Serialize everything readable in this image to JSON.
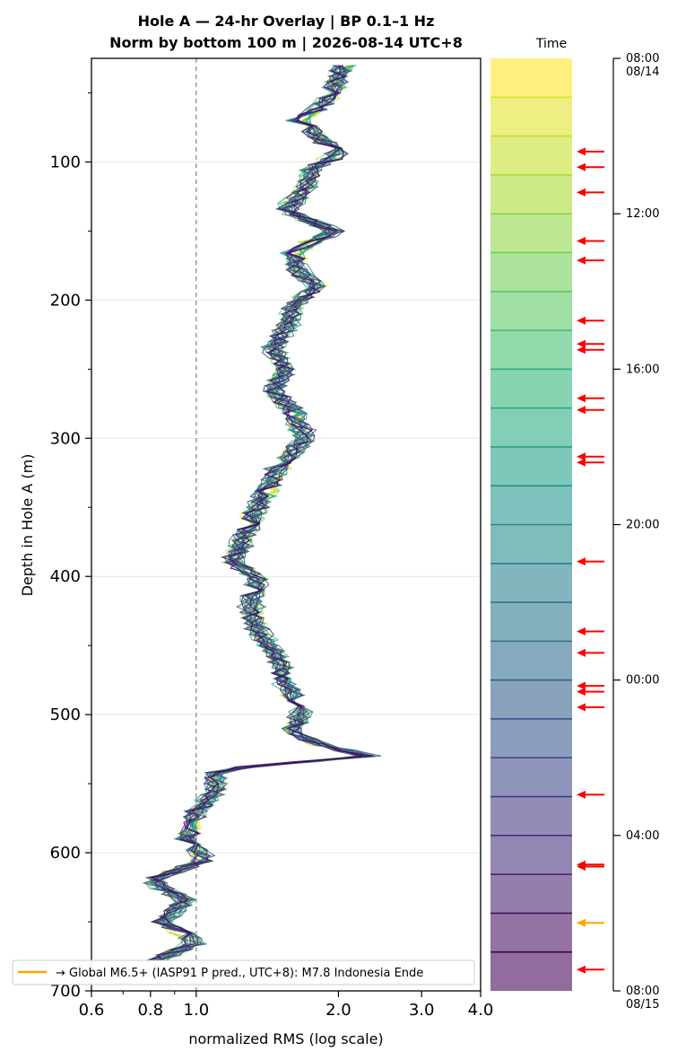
{
  "chart_data": {
    "type": "line",
    "title_line1": "Hole A — 24-hr Overlay  |  BP 0.1–1 Hz",
    "title_line2": "Norm by bottom 100 m  |  2026-08-14 UTC+8",
    "xlabel": "normalized RMS  (log scale)",
    "ylabel": "Depth in Hole A (m)",
    "x_scale": "log",
    "xlim": [
      0.6,
      4.0
    ],
    "ylim": [
      700,
      25
    ],
    "x_ticks": [
      {
        "value": 0.6,
        "label": "0.6"
      },
      {
        "value": 0.8,
        "label": "0.8"
      },
      {
        "value": 1.0,
        "label": "1.0"
      },
      {
        "value": 2.0,
        "label": "2.0"
      },
      {
        "value": 3.0,
        "label": "3.0"
      },
      {
        "value": 4.0,
        "label": "4.0"
      }
    ],
    "y_ticks": [
      100,
      200,
      300,
      400,
      500,
      600,
      700
    ],
    "reference_line_x": 1.0,
    "grid": "horizontal",
    "series_count": 24,
    "colormap": [
      "#fde725",
      "#b5de2b",
      "#6ece58",
      "#35b779",
      "#1f9e89",
      "#26828e",
      "#31688e",
      "#3e4989",
      "#482878",
      "#440154"
    ],
    "profile": [
      {
        "depth": 30,
        "value": 2.05
      },
      {
        "depth": 40,
        "value": 2.0
      },
      {
        "depth": 55,
        "value": 1.9
      },
      {
        "depth": 70,
        "value": 1.65
      },
      {
        "depth": 85,
        "value": 1.85
      },
      {
        "depth": 95,
        "value": 2.0
      },
      {
        "depth": 105,
        "value": 1.75
      },
      {
        "depth": 120,
        "value": 1.7
      },
      {
        "depth": 135,
        "value": 1.55
      },
      {
        "depth": 150,
        "value": 1.95
      },
      {
        "depth": 165,
        "value": 1.6
      },
      {
        "depth": 180,
        "value": 1.65
      },
      {
        "depth": 190,
        "value": 1.8
      },
      {
        "depth": 205,
        "value": 1.6
      },
      {
        "depth": 220,
        "value": 1.55
      },
      {
        "depth": 235,
        "value": 1.45
      },
      {
        "depth": 250,
        "value": 1.55
      },
      {
        "depth": 265,
        "value": 1.45
      },
      {
        "depth": 280,
        "value": 1.6
      },
      {
        "depth": 300,
        "value": 1.7
      },
      {
        "depth": 320,
        "value": 1.5
      },
      {
        "depth": 340,
        "value": 1.4
      },
      {
        "depth": 360,
        "value": 1.3
      },
      {
        "depth": 375,
        "value": 1.25
      },
      {
        "depth": 390,
        "value": 1.2
      },
      {
        "depth": 400,
        "value": 1.35
      },
      {
        "depth": 420,
        "value": 1.3
      },
      {
        "depth": 440,
        "value": 1.35
      },
      {
        "depth": 460,
        "value": 1.5
      },
      {
        "depth": 480,
        "value": 1.55
      },
      {
        "depth": 495,
        "value": 1.7
      },
      {
        "depth": 510,
        "value": 1.6
      },
      {
        "depth": 520,
        "value": 1.75
      },
      {
        "depth": 530,
        "value": 2.3
      },
      {
        "depth": 540,
        "value": 1.1
      },
      {
        "depth": 555,
        "value": 1.1
      },
      {
        "depth": 570,
        "value": 1.0
      },
      {
        "depth": 590,
        "value": 0.95
      },
      {
        "depth": 605,
        "value": 1.05
      },
      {
        "depth": 620,
        "value": 0.8
      },
      {
        "depth": 635,
        "value": 0.95
      },
      {
        "depth": 650,
        "value": 0.85
      },
      {
        "depth": 665,
        "value": 1.0
      },
      {
        "depth": 680,
        "value": 0.8
      }
    ],
    "legend": {
      "label": "→ Global M6.5+ (IASP91 P pred., UTC+8): M7.8 Indonesia Ende",
      "color": "#ffa500",
      "placement": "lower-left"
    }
  },
  "time_bar": {
    "title": "Time",
    "start_hour": 8,
    "end_hour": 32,
    "ticks": [
      {
        "hour": 8,
        "label": "08:00",
        "sublabel": "08/14"
      },
      {
        "hour": 12,
        "label": "12:00",
        "sublabel": ""
      },
      {
        "hour": 16,
        "label": "16:00",
        "sublabel": ""
      },
      {
        "hour": 20,
        "label": "20:00",
        "sublabel": ""
      },
      {
        "hour": 24,
        "label": "00:00",
        "sublabel": ""
      },
      {
        "hour": 28,
        "label": "04:00",
        "sublabel": ""
      },
      {
        "hour": 32,
        "label": "08:00",
        "sublabel": "08/15"
      }
    ],
    "arrow_color": "#ff0000",
    "highlight_color": "#ffa500",
    "event_hours": [
      10.4,
      10.8,
      11.45,
      12.7,
      13.2,
      14.75,
      15.35,
      15.5,
      16.75,
      17.05,
      18.25,
      18.4,
      20.95,
      22.75,
      23.3,
      24.15,
      24.3,
      24.7,
      26.95,
      28.75,
      28.8,
      31.45
    ],
    "highlight_event_hours": [
      30.25
    ]
  }
}
